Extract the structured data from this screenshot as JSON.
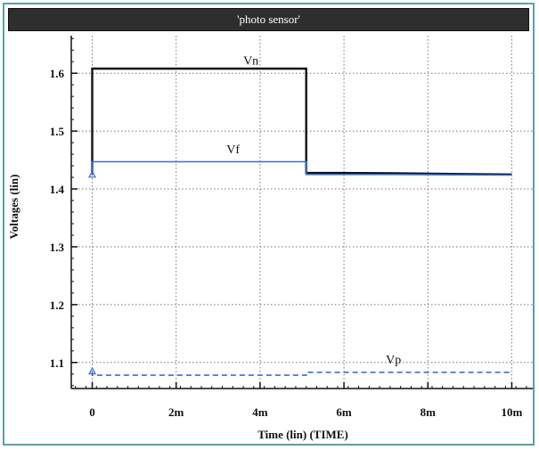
{
  "window": {
    "title": "'photo sensor'"
  },
  "chart_data": {
    "type": "line",
    "title": "'photo sensor'",
    "xlabel": "Time (lin) (TIME)",
    "ylabel": "Voltages (lin)",
    "xlim": [
      -0.5,
      10.5
    ],
    "ylim": [
      1.055,
      1.665
    ],
    "x_ticks": [
      0,
      2,
      4,
      6,
      8,
      10
    ],
    "x_tick_labels": [
      "0",
      "2m",
      "4m",
      "6m",
      "8m",
      "10m"
    ],
    "y_ticks": [
      1.1,
      1.2,
      1.3,
      1.4,
      1.5,
      1.6
    ],
    "y_tick_labels": [
      "1.1",
      "1.2",
      "1.3",
      "1.4",
      "1.5",
      "1.6"
    ],
    "grid": true,
    "series": [
      {
        "name": "Vn",
        "color": "#111111",
        "style": "solid",
        "x": [
          0,
          0,
          5.1,
          5.1,
          7.2,
          10
        ],
        "y": [
          1.425,
          1.608,
          1.608,
          1.428,
          1.427,
          1.425
        ]
      },
      {
        "name": "Vf",
        "color": "#3b6fd0",
        "style": "solid",
        "x": [
          0,
          0,
          5.1,
          5.1,
          7.2,
          10
        ],
        "y": [
          1.425,
          1.447,
          1.447,
          1.425,
          1.425,
          1.424
        ]
      },
      {
        "name": "Vp",
        "color": "#3b6fd0",
        "style": "dashed",
        "x": [
          0,
          0,
          5.1,
          5.1,
          10
        ],
        "y": [
          1.085,
          1.078,
          1.078,
          1.083,
          1.083
        ]
      }
    ]
  }
}
